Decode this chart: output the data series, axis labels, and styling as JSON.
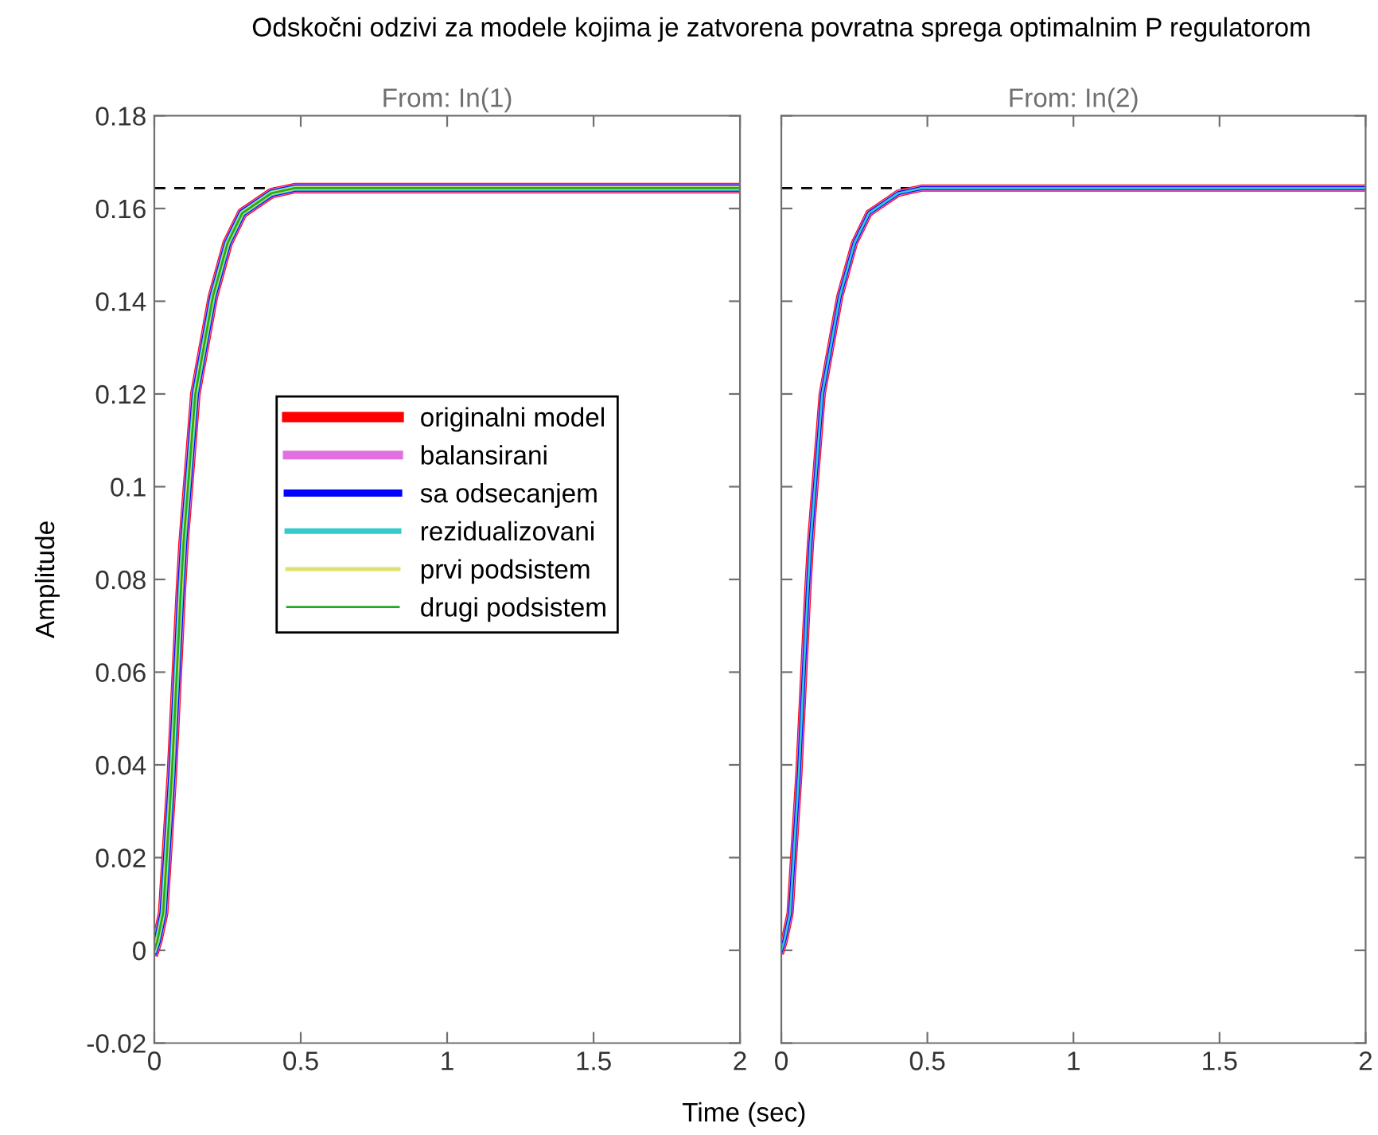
{
  "chart_data": [
    {
      "type": "line",
      "title": "Odskočni odzivi za modele kojima je zatvorena povratna sprega optimalnim P regulatorom",
      "subtitle": "From: In(1)",
      "xlabel": "Time (sec)",
      "ylabel": "Amplitude",
      "x": [
        0,
        0.01,
        0.03,
        0.06,
        0.09,
        0.1,
        0.14,
        0.2,
        0.25,
        0.3,
        0.4,
        0.48,
        2.0
      ],
      "series": [
        {
          "name": "originalni model",
          "color": "#ff0000",
          "values": [
            0,
            0.002,
            0.008,
            0.038,
            0.077,
            0.088,
            0.12,
            0.141,
            0.1525,
            0.159,
            0.1633,
            0.1644,
            0.1644
          ]
        },
        {
          "name": "balansirani",
          "color": "#e070e0",
          "values": [
            0,
            0.002,
            0.008,
            0.038,
            0.077,
            0.088,
            0.12,
            0.141,
            0.1525,
            0.159,
            0.1633,
            0.1644,
            0.1644
          ]
        },
        {
          "name": "sa odsecanjem",
          "color": "#0000ff",
          "values": [
            0,
            0.002,
            0.008,
            0.038,
            0.077,
            0.088,
            0.12,
            0.141,
            0.1525,
            0.159,
            0.1633,
            0.1644,
            0.1644
          ]
        },
        {
          "name": "rezidualizovani",
          "color": "#33cccc",
          "values": [
            0,
            0.002,
            0.008,
            0.038,
            0.077,
            0.088,
            0.12,
            0.141,
            0.1525,
            0.159,
            0.1633,
            0.1644,
            0.1644
          ]
        },
        {
          "name": "prvi podsistem",
          "color": "#e0e070",
          "values": [
            0,
            0.002,
            0.008,
            0.038,
            0.077,
            0.088,
            0.12,
            0.141,
            0.1525,
            0.159,
            0.1633,
            0.1644,
            0.1644
          ]
        },
        {
          "name": "drugi podsistem",
          "color": "#22aa22",
          "values": [
            0,
            0.002,
            0.008,
            0.038,
            0.077,
            0.088,
            0.12,
            0.141,
            0.1525,
            0.159,
            0.1633,
            0.1644,
            0.1644
          ]
        }
      ],
      "ref_lines": [
        {
          "axis": "y",
          "value": 0.1644,
          "color": "#000000",
          "line_style": "dashed"
        }
      ],
      "xlim": [
        0,
        2
      ],
      "xticks": [
        0,
        0.5,
        1,
        1.5,
        2
      ],
      "ylim": [
        -0.02,
        0.18
      ],
      "yticks": [
        -0.02,
        0,
        0.02,
        0.04,
        0.06,
        0.08,
        0.1,
        0.12,
        0.14,
        0.16,
        0.18
      ],
      "grid": false,
      "legend": "center"
    },
    {
      "type": "line",
      "subtitle": "From: In(2)",
      "x": [
        0,
        0.01,
        0.03,
        0.06,
        0.09,
        0.1,
        0.14,
        0.2,
        0.25,
        0.3,
        0.4,
        0.48,
        2.0
      ],
      "series": [
        {
          "color": "#ff0000",
          "values": [
            0,
            0.002,
            0.008,
            0.038,
            0.077,
            0.088,
            0.12,
            0.141,
            0.1525,
            0.159,
            0.1633,
            0.1644,
            0.1644
          ]
        },
        {
          "color": "#e070e0",
          "values": [
            0,
            0.002,
            0.008,
            0.038,
            0.077,
            0.088,
            0.12,
            0.141,
            0.1525,
            0.159,
            0.1633,
            0.1644,
            0.1644
          ]
        },
        {
          "color": "#0000ff",
          "values": [
            0,
            0.002,
            0.008,
            0.038,
            0.077,
            0.088,
            0.12,
            0.141,
            0.1525,
            0.159,
            0.1633,
            0.1644,
            0.1644
          ]
        },
        {
          "color": "#33cccc",
          "values": [
            0,
            0.002,
            0.008,
            0.038,
            0.077,
            0.088,
            0.12,
            0.141,
            0.1525,
            0.159,
            0.1633,
            0.1644,
            0.1644
          ]
        }
      ],
      "ref_lines": [
        {
          "axis": "y",
          "value": 0.1644,
          "color": "#000000",
          "line_style": "dashed"
        }
      ],
      "xlim": [
        0,
        2
      ],
      "xticks": [
        0,
        0.5,
        1,
        1.5,
        2
      ],
      "ylim": [
        -0.02,
        0.18
      ],
      "yticks": [
        -0.02,
        0,
        0.02,
        0.04,
        0.06,
        0.08,
        0.1,
        0.12,
        0.14,
        0.16,
        0.18
      ],
      "grid": false,
      "tick_labels": "x"
    }
  ]
}
